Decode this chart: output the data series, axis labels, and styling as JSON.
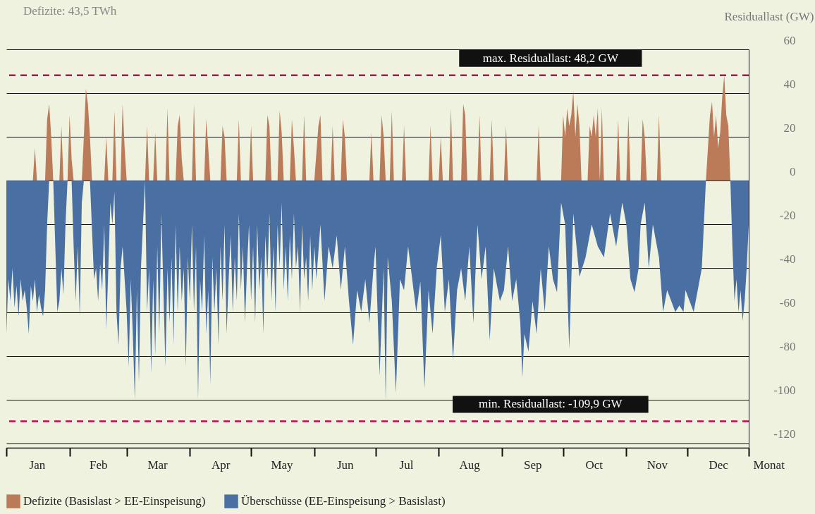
{
  "chart_data": {
    "type": "area",
    "ylabel": "Residuallast (GW)",
    "xlabel": "Monat",
    "annotations": [
      "Defizite: 43,5 TWh"
    ],
    "xlim": [
      "--01-01",
      "--12-31"
    ],
    "xticks": [
      {
        "value": "--01-01",
        "label": null
      },
      {
        "value": "--01-16",
        "label": "Jan"
      },
      {
        "value": "--02-01",
        "label": null
      },
      {
        "value": "--02-15",
        "label": "Feb"
      },
      {
        "value": "--03-01",
        "label": null
      },
      {
        "value": "--03-16",
        "label": "Mar"
      },
      {
        "value": "--04-01",
        "label": null
      },
      {
        "value": "--04-16",
        "label": "Apr"
      },
      {
        "value": "--05-01",
        "label": null
      },
      {
        "value": "--05-16",
        "label": "May"
      },
      {
        "value": "--06-01",
        "label": null
      },
      {
        "value": "--06-16",
        "label": "Jun"
      },
      {
        "value": "--07-01",
        "label": null
      },
      {
        "value": "--07-16",
        "label": "Jul"
      },
      {
        "value": "--08-01",
        "label": null
      },
      {
        "value": "--08-16",
        "label": "Aug"
      },
      {
        "value": "--09-01",
        "label": null
      },
      {
        "value": "--09-16",
        "label": "Sep"
      },
      {
        "value": "--10-01",
        "label": null
      },
      {
        "value": "--10-16",
        "label": "Oct"
      },
      {
        "value": "--11-01",
        "label": null
      },
      {
        "value": "--11-16",
        "label": "Nov"
      },
      {
        "value": "--12-01",
        "label": null
      },
      {
        "value": "--12-16",
        "label": "Dec"
      },
      {
        "value": "--12-31",
        "label": null
      }
    ],
    "ylim": [
      -122,
      60
    ],
    "yticks": [
      -120,
      -100,
      -80,
      -60,
      -40,
      -20,
      0,
      20,
      40,
      60
    ],
    "grid": "y",
    "legend": "bottom",
    "ref_lines": [
      {
        "axis": "y",
        "value": 48.2,
        "label": "max. Residuallast: 48,2 GW",
        "color": "#d6004f",
        "line_style": "dashed"
      },
      {
        "axis": "y",
        "value": -109.9,
        "label": "min. Residuallast: -109,9 GW",
        "color": "#d6004f",
        "line_style": "dashed"
      }
    ],
    "series": [
      {
        "name": "Defizite (Basislast > EE-Einspeisung)",
        "color": "#bb7a58",
        "x": [
          "--01-01",
          "--01-14",
          "--01-15",
          "--01-16",
          "--01-20",
          "--01-21",
          "--01-22",
          "--01-23",
          "--01-24",
          "--01-27",
          "--01-28",
          "--01-29",
          "--01-31",
          "--02-01",
          "--02-02",
          "--02-03",
          "--02-07",
          "--02-08",
          "--02-09",
          "--02-10",
          "--02-11",
          "--02-12",
          "--02-18",
          "--02-19",
          "--02-20",
          "--02-22",
          "--02-23",
          "--02-24",
          "--02-26",
          "--02-27",
          "--02-28",
          "--03-01",
          "--03-10",
          "--03-11",
          "--03-12",
          "--03-14",
          "--03-15",
          "--03-16",
          "--03-20",
          "--03-21",
          "--03-22",
          "--03-25",
          "--03-26",
          "--03-27",
          "--03-28",
          "--03-29",
          "--04-02",
          "--04-03",
          "--04-04",
          "--04-08",
          "--04-09",
          "--04-10",
          "--04-11",
          "--04-16",
          "--04-17",
          "--04-18",
          "--04-19",
          "--04-24",
          "--04-25",
          "--04-26",
          "--04-30",
          "--05-01",
          "--05-02",
          "--05-08",
          "--05-09",
          "--05-10",
          "--05-11",
          "--05-14",
          "--05-15",
          "--05-16",
          "--05-17",
          "--05-20",
          "--05-21",
          "--05-22",
          "--05-23",
          "--05-26",
          "--05-27",
          "--05-28",
          "--06-01",
          "--06-03",
          "--06-04",
          "--06-05",
          "--06-09",
          "--06-10",
          "--06-11",
          "--06-14",
          "--06-15",
          "--06-16",
          "--06-17",
          "--06-28",
          "--06-29",
          "--06-30",
          "--07-03",
          "--07-04",
          "--07-05",
          "--07-06",
          "--07-08",
          "--07-09",
          "--07-10",
          "--07-14",
          "--07-15",
          "--07-16",
          "--07-27",
          "--07-28",
          "--07-29",
          "--08-01",
          "--08-02",
          "--08-03",
          "--08-06",
          "--08-07",
          "--08-08",
          "--08-12",
          "--08-13",
          "--08-14",
          "--08-15",
          "--08-20",
          "--08-21",
          "--08-22",
          "--08-26",
          "--08-27",
          "--08-28",
          "--09-02",
          "--09-03",
          "--09-04",
          "--09-18",
          "--09-19",
          "--09-20",
          "--09-30",
          "--10-01",
          "--10-02",
          "--10-03",
          "--10-04",
          "--10-05",
          "--10-06",
          "--10-07",
          "--10-08",
          "--10-09",
          "--10-10",
          "--10-13",
          "--10-14",
          "--10-15",
          "--10-16",
          "--10-17",
          "--10-18",
          "--10-19",
          "--10-20",
          "--10-21",
          "--10-27",
          "--10-28",
          "--10-29",
          "--11-01",
          "--11-02",
          "--11-03",
          "--11-08",
          "--11-09",
          "--11-10",
          "--11-11",
          "--11-16",
          "--11-17",
          "--11-18",
          "--11-30",
          "--12-10",
          "--12-11",
          "--12-12",
          "--12-13",
          "--12-14",
          "--12-15",
          "--12-16",
          "--12-17",
          "--12-18",
          "--12-19",
          "--12-20",
          "--12-21",
          "--12-22",
          "--12-31"
        ],
        "values": [
          0,
          0,
          15,
          0,
          0,
          28,
          35,
          20,
          0,
          0,
          25,
          0,
          0,
          30,
          10,
          0,
          0,
          20,
          42,
          35,
          20,
          0,
          0,
          20,
          0,
          0,
          32,
          0,
          0,
          35,
          15,
          0,
          0,
          25,
          0,
          0,
          22,
          0,
          0,
          33,
          0,
          0,
          25,
          30,
          10,
          0,
          0,
          35,
          0,
          0,
          28,
          15,
          0,
          0,
          25,
          20,
          0,
          0,
          28,
          0,
          0,
          25,
          0,
          0,
          30,
          25,
          0,
          0,
          32,
          22,
          0,
          0,
          28,
          15,
          0,
          0,
          30,
          0,
          0,
          25,
          30,
          0,
          0,
          25,
          0,
          0,
          28,
          20,
          0,
          0,
          22,
          0,
          0,
          30,
          20,
          0,
          0,
          32,
          0,
          0,
          25,
          0,
          0,
          25,
          0,
          0,
          20,
          0,
          0,
          33,
          0,
          0,
          35,
          30,
          0,
          0,
          30,
          0,
          0,
          28,
          0,
          0,
          25,
          0,
          0,
          25,
          0,
          0,
          30,
          20,
          33,
          25,
          30,
          41,
          20,
          35,
          25,
          0,
          0,
          25,
          20,
          30,
          20,
          33,
          0,
          33,
          0,
          0,
          28,
          0,
          0,
          30,
          0,
          0,
          28,
          20,
          0,
          0,
          30,
          0,
          0,
          0,
          15,
          30,
          36,
          20,
          30,
          15,
          22,
          38,
          48.2,
          30,
          25,
          0,
          0
        ]
      },
      {
        "name": "Überschüsse (EE-Einspeisung > Basislast)",
        "color": "#4a70a3",
        "x": [
          "--01-01",
          "--01-02",
          "--01-03",
          "--01-04",
          "--01-05",
          "--01-06",
          "--01-07",
          "--01-08",
          "--01-09",
          "--01-10",
          "--01-11",
          "--01-12",
          "--01-13",
          "--01-14",
          "--01-15",
          "--01-16",
          "--01-17",
          "--01-18",
          "--01-19",
          "--01-20",
          "--01-21",
          "--01-22",
          "--01-24",
          "--01-25",
          "--01-26",
          "--01-27",
          "--01-28",
          "--01-29",
          "--01-30",
          "--01-31",
          "--02-02",
          "--02-03",
          "--02-04",
          "--02-05",
          "--02-06",
          "--02-07",
          "--02-08",
          "--02-11",
          "--02-13",
          "--02-14",
          "--02-15",
          "--02-16",
          "--02-17",
          "--02-18",
          "--02-19",
          "--02-20",
          "--02-21",
          "--02-22",
          "--02-23",
          "--02-24",
          "--02-25",
          "--02-26",
          "--02-27",
          "--02-28",
          "--03-01",
          "--03-02",
          "--03-03",
          "--03-04",
          "--03-05",
          "--03-06",
          "--03-07",
          "--03-08",
          "--03-09",
          "--03-10",
          "--03-11",
          "--03-12",
          "--03-13",
          "--03-14",
          "--03-15",
          "--03-16",
          "--03-17",
          "--03-18",
          "--03-19",
          "--03-20",
          "--03-21",
          "--03-22",
          "--03-23",
          "--03-24",
          "--03-25",
          "--03-26",
          "--03-27",
          "--03-28",
          "--03-29",
          "--03-30",
          "--03-31",
          "--04-01",
          "--04-02",
          "--04-03",
          "--04-04",
          "--04-05",
          "--04-06",
          "--04-07",
          "--04-08",
          "--04-09",
          "--04-10",
          "--04-11",
          "--04-12",
          "--04-13",
          "--04-14",
          "--04-15",
          "--04-16",
          "--04-17",
          "--04-18",
          "--04-19",
          "--04-20",
          "--04-21",
          "--04-22",
          "--04-23",
          "--04-24",
          "--04-25",
          "--04-26",
          "--04-27",
          "--04-28",
          "--04-29",
          "--04-30",
          "--05-01",
          "--05-02",
          "--05-03",
          "--05-04",
          "--05-05",
          "--05-06",
          "--05-07",
          "--05-08",
          "--05-09",
          "--05-10",
          "--05-11",
          "--05-12",
          "--05-13",
          "--05-14",
          "--05-15",
          "--05-16",
          "--05-17",
          "--05-18",
          "--05-19",
          "--05-20",
          "--05-21",
          "--05-22",
          "--05-23",
          "--05-24",
          "--05-25",
          "--05-26",
          "--05-27",
          "--05-28",
          "--05-29",
          "--05-30",
          "--05-31",
          "--06-01",
          "--06-02",
          "--06-04",
          "--06-06",
          "--06-08",
          "--06-10",
          "--06-12",
          "--06-14",
          "--06-16",
          "--06-18",
          "--06-20",
          "--06-22",
          "--06-24",
          "--06-26",
          "--06-28",
          "--06-30",
          "--07-01",
          "--07-03",
          "--07-05",
          "--07-06",
          "--07-07",
          "--07-09",
          "--07-11",
          "--07-13",
          "--07-15",
          "--07-17",
          "--07-19",
          "--07-21",
          "--07-23",
          "--07-25",
          "--07-27",
          "--07-29",
          "--07-31",
          "--08-02",
          "--08-04",
          "--08-06",
          "--08-08",
          "--08-10",
          "--08-12",
          "--08-14",
          "--08-16",
          "--08-18",
          "--08-20",
          "--08-22",
          "--08-24",
          "--08-26",
          "--08-28",
          "--08-31",
          "--09-02",
          "--09-04",
          "--09-06",
          "--09-08",
          "--09-10",
          "--09-11",
          "--09-12",
          "--09-14",
          "--09-16",
          "--09-18",
          "--09-20",
          "--09-22",
          "--09-24",
          "--09-26",
          "--09-28",
          "--09-30",
          "--10-02",
          "--10-04",
          "--10-06",
          "--10-09",
          "--10-12",
          "--10-15",
          "--10-18",
          "--10-21",
          "--10-24",
          "--10-27",
          "--10-30",
          "--11-01",
          "--11-03",
          "--11-05",
          "--11-07",
          "--11-08",
          "--11-10",
          "--11-12",
          "--11-14",
          "--11-17",
          "--11-19",
          "--11-21",
          "--11-23",
          "--11-25",
          "--11-27",
          "--11-29",
          "--11-30",
          "--12-02",
          "--12-04",
          "--12-06",
          "--12-08",
          "--12-10",
          "--12-22",
          "--12-23",
          "--12-24",
          "--12-25",
          "--12-26",
          "--12-27",
          "--12-28",
          "--12-29",
          "--12-30",
          "--12-31"
        ],
        "values": [
          -70,
          -45,
          -55,
          -40,
          -58,
          -48,
          -62,
          -45,
          -55,
          -50,
          -58,
          -70,
          -48,
          -55,
          -45,
          -60,
          -52,
          -58,
          -62,
          -50,
          -20,
          0,
          0,
          -30,
          -60,
          -55,
          -40,
          -52,
          -20,
          0,
          0,
          -30,
          -55,
          -30,
          -62,
          -10,
          0,
          0,
          -45,
          -40,
          -55,
          -38,
          -50,
          -20,
          -68,
          -40,
          -10,
          -20,
          -5,
          -60,
          -75,
          -40,
          -30,
          -45,
          -60,
          -85,
          -45,
          -70,
          -100,
          -50,
          -92,
          -40,
          -20,
          0,
          -60,
          -40,
          -88,
          -45,
          -80,
          -30,
          -70,
          -15,
          -50,
          -85,
          -40,
          -65,
          -35,
          -75,
          -20,
          -60,
          -30,
          -55,
          -40,
          -85,
          -35,
          -55,
          -20,
          -60,
          -30,
          -100,
          -45,
          -60,
          -25,
          -70,
          -50,
          -93,
          -35,
          -60,
          -40,
          -75,
          -30,
          -55,
          -20,
          -70,
          -45,
          -25,
          -60,
          -35,
          -55,
          -15,
          -50,
          -30,
          -65,
          -40,
          -20,
          -55,
          -30,
          -65,
          -20,
          -50,
          -35,
          -70,
          -25,
          -45,
          -15,
          -55,
          -30,
          -60,
          -20,
          -40,
          -10,
          -50,
          -30,
          -55,
          -25,
          -45,
          -15,
          -40,
          -30,
          -60,
          -20,
          -45,
          -35,
          -55,
          -25,
          -50,
          -30,
          -45,
          -20,
          -55,
          -30,
          -40,
          -25,
          -50,
          -30,
          -55,
          -75,
          -50,
          -60,
          -45,
          -65,
          -40,
          -30,
          -89,
          -40,
          -101,
          -35,
          -55,
          -97,
          -45,
          -50,
          -30,
          -45,
          -60,
          -46,
          -95,
          -50,
          -70,
          -40,
          -25,
          -60,
          -45,
          -82,
          -50,
          -40,
          -55,
          -30,
          -65,
          -20,
          -45,
          -30,
          -73,
          -40,
          -55,
          -50,
          -30,
          -55,
          -45,
          -65,
          -90,
          -70,
          -78,
          -55,
          -70,
          -40,
          -60,
          -30,
          -45,
          -51,
          -10,
          -20,
          -77,
          -15,
          -44,
          -35,
          -20,
          -30,
          -35,
          -15,
          -30,
          -10,
          -20,
          -45,
          -51,
          -40,
          -20,
          -10,
          -40,
          -20,
          -35,
          -60,
          -50,
          -55,
          -60,
          -57,
          -60,
          -50,
          -55,
          -60,
          -50,
          -40,
          0,
          0,
          -30,
          -55,
          -45,
          -60,
          -50,
          -64,
          -55,
          -40,
          -20
        ]
      }
    ]
  }
}
